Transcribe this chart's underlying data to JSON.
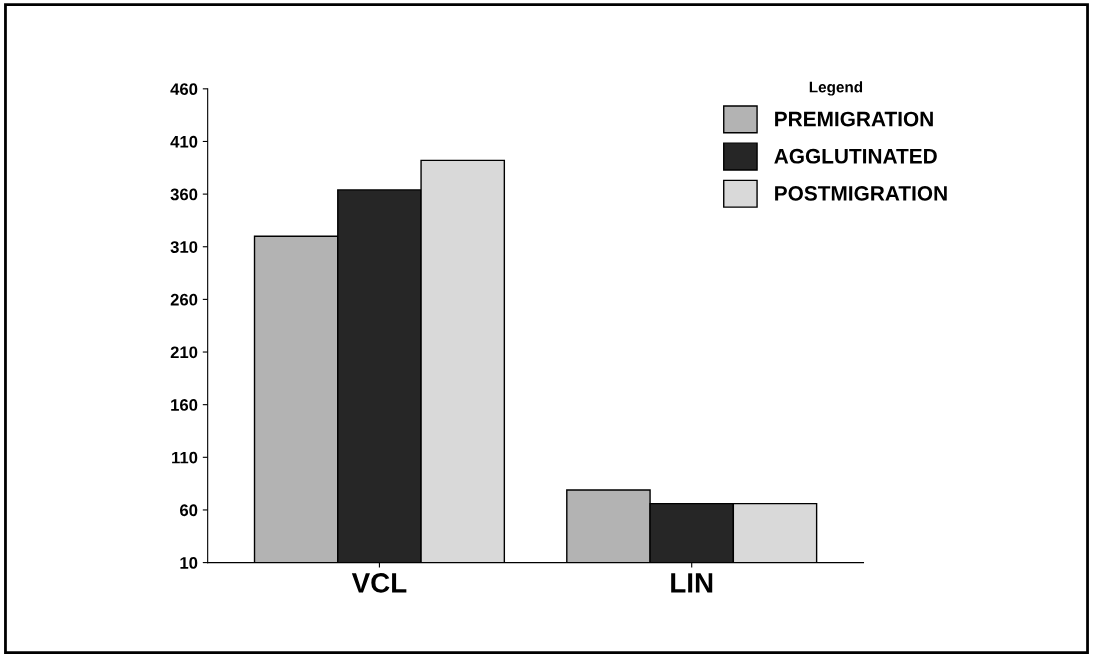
{
  "chart_data": {
    "type": "bar",
    "categories": [
      "VCL",
      "LIN"
    ],
    "series": [
      {
        "name": "PREMIGRATION",
        "color": "#b3b3b3",
        "values": [
          320,
          79
        ]
      },
      {
        "name": "AGGLUTINATED",
        "color": "#262626",
        "values": [
          364,
          66
        ]
      },
      {
        "name": "POSTMIGRATION",
        "color": "#d9d9d9",
        "values": [
          392,
          66
        ]
      }
    ],
    "legend_title": "Legend",
    "legend": "top right",
    "ylim": [
      10,
      460
    ],
    "yticks": [
      10,
      60,
      110,
      160,
      210,
      260,
      310,
      360,
      410,
      460
    ],
    "grid": false
  }
}
